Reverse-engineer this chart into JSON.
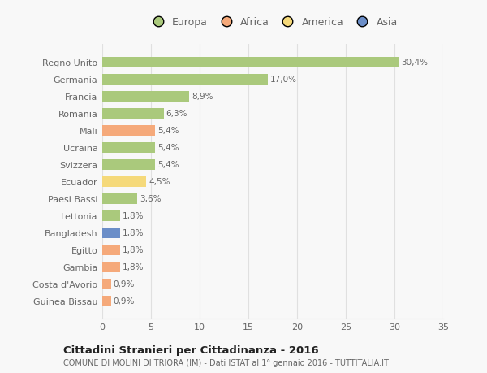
{
  "countries": [
    "Guinea Bissau",
    "Costa d'Avorio",
    "Gambia",
    "Egitto",
    "Bangladesh",
    "Lettonia",
    "Paesi Bassi",
    "Ecuador",
    "Svizzera",
    "Ucraina",
    "Mali",
    "Romania",
    "Francia",
    "Germania",
    "Regno Unito"
  ],
  "values": [
    0.9,
    0.9,
    1.8,
    1.8,
    1.8,
    1.8,
    3.6,
    4.5,
    5.4,
    5.4,
    5.4,
    6.3,
    8.9,
    17.0,
    30.4
  ],
  "labels": [
    "0,9%",
    "0,9%",
    "1,8%",
    "1,8%",
    "1,8%",
    "1,8%",
    "3,6%",
    "4,5%",
    "5,4%",
    "5,4%",
    "5,4%",
    "6,3%",
    "8,9%",
    "17,0%",
    "30,4%"
  ],
  "colors": [
    "#f5a97a",
    "#f5a97a",
    "#f5a97a",
    "#f5a97a",
    "#6b8ec8",
    "#aac97c",
    "#aac97c",
    "#f5d97a",
    "#aac97c",
    "#aac97c",
    "#f5a97a",
    "#aac97c",
    "#aac97c",
    "#aac97c",
    "#aac97c"
  ],
  "legend_labels": [
    "Europa",
    "Africa",
    "America",
    "Asia"
  ],
  "legend_colors": [
    "#aac97c",
    "#f5a97a",
    "#f5d97a",
    "#6b8ec8"
  ],
  "title": "Cittadini Stranieri per Cittadinanza - 2016",
  "subtitle": "COMUNE DI MOLINI DI TRIORA (IM) - Dati ISTAT al 1° gennaio 2016 - TUTTITALIA.IT",
  "xlim": [
    0,
    35
  ],
  "xticks": [
    0,
    5,
    10,
    15,
    20,
    25,
    30,
    35
  ],
  "background_color": "#f8f8f8",
  "grid_color": "#e0e0e0",
  "text_color": "#666666",
  "title_color": "#222222",
  "subtitle_color": "#666666"
}
